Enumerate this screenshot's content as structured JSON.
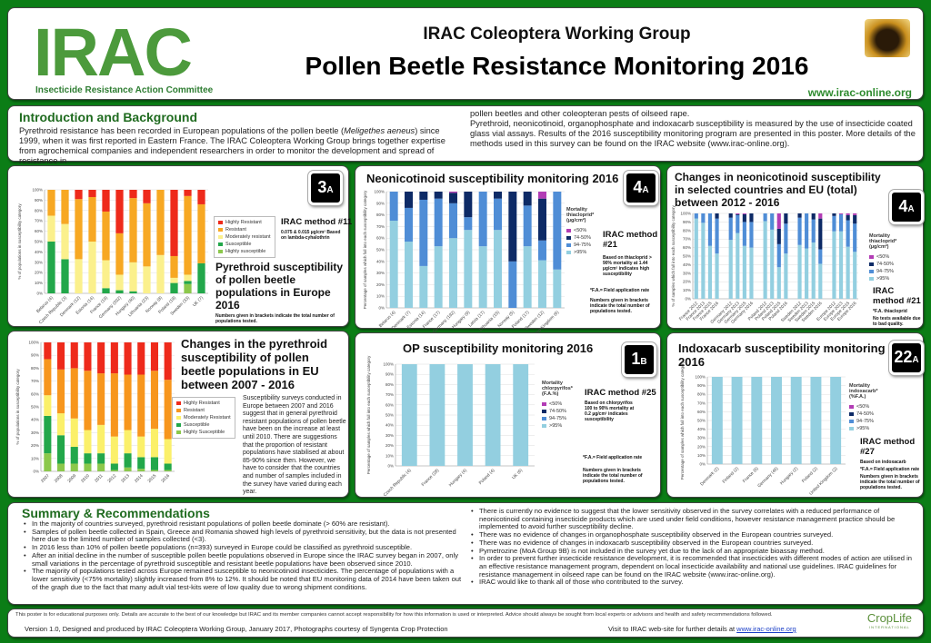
{
  "header": {
    "logo_text": "IRAC",
    "logo_subtitle": "Insecticide Resistance Action Committee",
    "working_group": "IRAC Coleoptera Working Group",
    "title": "Pollen Beetle Resistance Monitoring 2016",
    "url": "www.irac-online.org"
  },
  "intro": {
    "heading": "Introduction and Background",
    "text_left_1": "Pyrethroid resistance has been recorded in European populations of the pollen beetle (",
    "species": "Meligethes aeneus",
    "text_left_2": ") since 1999, when it was first reported in Eastern France. The IRAC Coleoptera Working Group brings together expertise from agrochemical companies and independent researchers in order to monitor the development and spread of resistance in",
    "text_right_1": "pollen beetles and other coleopteran pests of oilseed rape.",
    "text_right_2": "Pyrethroid, neonicotinoid, organophosphate and indoxacarb susceptibility is measured by the use of insecticide coated glass vial assays. Results of the 2016 susceptibility monitoring program are presented in this poster. More details of the methods used in this survey can be found on the IRAC website (www.irac-online.org)."
  },
  "panels": {
    "pyr2016": {
      "title": "Pyrethroid susceptibility of pollen beetle populations in Europe 2016",
      "badge_num": "3",
      "badge_sub": "A",
      "method": "IRAC method #11",
      "method_note": "0.075 & 0.015 µg/cm² Based on lambda-cyhalothrin",
      "note": "Numbers given in brackets indicate the total number of populations tested."
    },
    "pyrTrend": {
      "title": "Changes in the pyrethroid susceptibility of pollen beetle populations in EU between 2007 - 2016",
      "text": "Susceptibility surveys conducted in Europe between 2007 and 2016 suggest that in general pyrethroid resistant populations of pollen beetle have been on the increase at least until 2010. There are suggestions that the proportion of resistant populations have stabilised at about 85-90% since then. However, we have to consider that the countries and number of samples included in the survey have varied during each year."
    },
    "neo2016": {
      "title": "Neonicotinoid susceptibility monitoring 2016",
      "badge_num": "4",
      "badge_sub": "A",
      "method": "IRAC method #21",
      "method_note": "Based on thiacloprid > 90% mortality at 1.44 µg/cm² indicates high susceptibility",
      "fa_note": "*F.A.= Field application rate",
      "note": "Numbers given in brackets indicate the total number of populations tested."
    },
    "neoTrend": {
      "title": "Changes in neonicotinoid susceptibility in selected countries and EU (total) between 2012 - 2016",
      "badge_num": "4",
      "badge_sub": "A",
      "method": "IRAC method #21",
      "fa_note": "*F.A. thiacloprid",
      "note": "No tests available due to bad quality."
    },
    "op2016": {
      "title": "OP susceptibility monitoring 2016",
      "badge_num": "1",
      "badge_sub": "B",
      "method": "IRAC method #25",
      "method_note": "Based on chlorpyrifos 100 to 90% mortality at 0.2 µg/cm² indicates susceptibility",
      "fa_note": "*F.A.= Field application rate",
      "note": "Numbers given in brackets indicate the total number of populations tested."
    },
    "indox2016": {
      "title": "Indoxacarb susceptibility monitoring 2016",
      "badge_num": "22",
      "badge_sub": "A",
      "method": "IRAC method #27",
      "method_note": "Based on indoxacarb",
      "fa_note": "*F.A.= Field application rate",
      "note": "Numbers given in brackets indicate the total number of populations tested."
    }
  },
  "chart_data": [
    {
      "id": "pyr2016",
      "type": "bar",
      "stacked": true,
      "ylabel": "% of populations in susceptibility category",
      "ylim": [
        0,
        100
      ],
      "categories": [
        "Belarus (4)",
        "Czech Republic (3)",
        "Denmark (12)",
        "Estonia (14)",
        "France (19)",
        "Germany (202)",
        "Hungary (40)",
        "Lithuania (23)",
        "Norway (8)",
        "Poland (19)",
        "Sweden (33)",
        "UK (7)"
      ],
      "legend_position": "right",
      "series": [
        {
          "name": "Highly susceptible",
          "color": "#8cc84b",
          "values": [
            0,
            0,
            0,
            0,
            0,
            0,
            0,
            0,
            0,
            0,
            9,
            0
          ]
        },
        {
          "name": "Susceptible",
          "color": "#22a74a",
          "values": [
            50,
            33,
            0,
            0,
            5,
            3,
            2,
            0,
            0,
            10,
            3,
            29
          ]
        },
        {
          "name": "Moderately resistant",
          "color": "#fbf08c",
          "values": [
            25,
            34,
            33,
            50,
            27,
            15,
            28,
            26,
            37,
            5,
            6,
            0
          ]
        },
        {
          "name": "Resistant",
          "color": "#f7a823",
          "values": [
            25,
            33,
            58,
            43,
            47,
            40,
            62,
            61,
            63,
            21,
            76,
            57
          ]
        },
        {
          "name": "Highly Resistant",
          "color": "#ee2a1b",
          "values": [
            0,
            0,
            9,
            7,
            21,
            42,
            8,
            13,
            0,
            64,
            6,
            14
          ]
        }
      ]
    },
    {
      "id": "pyrTrend",
      "type": "bar",
      "stacked": true,
      "ylabel": "% of populations in susceptibility category",
      "ylim": [
        0,
        100
      ],
      "categories": [
        "2007",
        "2008",
        "2009",
        "2010",
        "2011",
        "2012",
        "2013",
        "2014",
        "2015",
        "2016"
      ],
      "legend_position": "right",
      "series": [
        {
          "name": "Highly Susceptible",
          "color": "#8cc84b",
          "values": [
            14,
            6,
            6,
            6,
            6,
            1,
            3,
            2,
            1,
            1
          ]
        },
        {
          "name": "Susceptible",
          "color": "#22a74a",
          "values": [
            29,
            22,
            13,
            8,
            8,
            5,
            11,
            9,
            10,
            5
          ]
        },
        {
          "name": "Moderately Resistant",
          "color": "#fbf06a",
          "values": [
            16,
            17,
            22,
            18,
            22,
            21,
            18,
            16,
            22,
            19
          ]
        },
        {
          "name": "Resistant",
          "color": "#f7961d",
          "values": [
            28,
            34,
            39,
            46,
            40,
            49,
            43,
            48,
            45,
            46
          ]
        },
        {
          "name": "Highly Resistant",
          "color": "#ee2a1b",
          "values": [
            13,
            21,
            20,
            22,
            24,
            24,
            25,
            25,
            22,
            29
          ]
        }
      ]
    },
    {
      "id": "neo2016",
      "type": "bar",
      "stacked": true,
      "ylabel": "Percentage of samples which fall into each susceptibility category",
      "ylim": [
        0,
        100
      ],
      "legend_title": "Mortality thiacloprid* (µg/cm²)",
      "categories": [
        "Belarus (4)",
        "Denmark (7)",
        "Estonia (14)",
        "France (17)",
        "Germany (192)",
        "Hungary (9)",
        "Latvia (17)",
        "Lithuania (15)",
        "Norway (5)",
        "Poland (17)",
        "Sweden (12)",
        "United Kingdom (6)"
      ],
      "legend_position": "right",
      "series": [
        {
          "name": ">95%",
          "color": "#93cfe0",
          "values": [
            75,
            57,
            36,
            53,
            60,
            67,
            53,
            67,
            0,
            53,
            41,
            33
          ]
        },
        {
          "name": "94-75%",
          "color": "#4f8dd6",
          "values": [
            25,
            29,
            57,
            41,
            30,
            11,
            47,
            27,
            40,
            35,
            17,
            67
          ]
        },
        {
          "name": "74-50%",
          "color": "#0d2a66",
          "values": [
            0,
            14,
            7,
            6,
            9,
            22,
            0,
            6,
            60,
            12,
            36,
            0
          ]
        },
        {
          "name": "<50%",
          "color": "#b23cb5",
          "values": [
            0,
            0,
            0,
            0,
            1,
            0,
            0,
            0,
            0,
            0,
            6,
            0
          ]
        }
      ]
    },
    {
      "id": "neoTrend",
      "type": "bar",
      "stacked": true,
      "ylabel": "% of samples which fall into each susceptibility category",
      "ylim": [
        0,
        100
      ],
      "legend_title": "Mortality thiacloprid* (µg/cm²)",
      "categories": [
        "France 2012",
        "France 2013",
        "France 2015",
        "France 2016",
        "",
        "Germany 2012",
        "Germany 2013",
        "Germany 2015",
        "Germany 2016",
        "",
        "Poland 2012",
        "Poland 2013",
        "Poland 2015",
        "Poland 2016",
        "",
        "Sweden 2012",
        "Sweden 2013",
        "Sweden 2015",
        "Sweden 2016",
        "",
        "Europe 2012",
        "Europe 2013",
        "Europe 2015",
        "Europe 2016"
      ],
      "legend_position": "right",
      "series": [
        {
          "name": ">95%",
          "color": "#93cfe0",
          "values": [
            94,
            89,
            62,
            53,
            0,
            69,
            77,
            62,
            60,
            0,
            91,
            81,
            37,
            53,
            0,
            63,
            59,
            66,
            41,
            0,
            79,
            79,
            61,
            55
          ]
        },
        {
          "name": "94-75%",
          "color": "#4f8dd6",
          "values": [
            6,
            11,
            38,
            41,
            0,
            26,
            21,
            28,
            30,
            0,
            9,
            19,
            27,
            35,
            0,
            32,
            41,
            27,
            17,
            0,
            18,
            20,
            31,
            33
          ]
        },
        {
          "name": "74-50%",
          "color": "#0d2a66",
          "values": [
            0,
            0,
            0,
            6,
            0,
            5,
            1,
            9,
            10,
            0,
            0,
            0,
            18,
            12,
            0,
            5,
            0,
            7,
            36,
            0,
            3,
            0,
            6,
            10
          ]
        },
        {
          "name": "<50%",
          "color": "#b23cb5",
          "values": [
            0,
            0,
            0,
            0,
            0,
            0,
            1,
            1,
            0,
            0,
            0,
            0,
            18,
            0,
            0,
            0,
            0,
            0,
            6,
            0,
            0,
            1,
            2,
            2
          ]
        }
      ]
    },
    {
      "id": "op2016",
      "type": "bar",
      "stacked": true,
      "ylabel": "Percentage of samples which fall into each susceptibility category",
      "ylim": [
        0,
        100
      ],
      "legend_title": "Mortality chlorpyrifos* (F.A.%)",
      "categories": [
        "Czech Republic (4)",
        "France (28)",
        "Hungary (4)",
        "Poland (4)",
        "UK (6)"
      ],
      "legend_position": "right",
      "series": [
        {
          "name": ">95%",
          "color": "#93cfe0",
          "values": [
            100,
            100,
            100,
            100,
            100
          ]
        },
        {
          "name": "94-75%",
          "color": "#4f8dd6",
          "values": [
            0,
            0,
            0,
            0,
            0
          ]
        },
        {
          "name": "74-50%",
          "color": "#0d2a66",
          "values": [
            0,
            0,
            0,
            0,
            0
          ]
        },
        {
          "name": "<50%",
          "color": "#b23cb5",
          "values": [
            0,
            0,
            0,
            0,
            0
          ]
        }
      ]
    },
    {
      "id": "indox2016",
      "type": "bar",
      "stacked": true,
      "ylabel": "Percentage of samples which fall into each susceptibility category",
      "ylim": [
        0,
        100
      ],
      "legend_title": "Mortality indoxacarb* (%F.A.)",
      "categories": [
        "Denmark (2)",
        "Finland (2)",
        "France (6)",
        "Germany (46)",
        "Hungary (2)",
        "Poland (2)",
        "United Kingdom (2)"
      ],
      "legend_position": "right",
      "series": [
        {
          "name": ">95%",
          "color": "#93cfe0",
          "values": [
            100,
            100,
            100,
            100,
            100,
            100,
            100
          ]
        },
        {
          "name": "94-75%",
          "color": "#4f8dd6",
          "values": [
            0,
            0,
            0,
            0,
            0,
            0,
            0
          ]
        },
        {
          "name": "74-50%",
          "color": "#0d2a66",
          "values": [
            0,
            0,
            0,
            0,
            0,
            0,
            0
          ]
        },
        {
          "name": "<50%",
          "color": "#b23cb5",
          "values": [
            0,
            0,
            0,
            0,
            0,
            0,
            0
          ]
        }
      ]
    }
  ],
  "summary": {
    "heading": "Summary & Recommendations",
    "left": [
      "In the majority of countries surveyed, pyrethroid resistant populations of pollen beetle dominate (> 60% are resistant).",
      "Samples of pollen beetle collected in Spain, Greece and Romania showed high levels of pyrethroid sensitivity, but the data is not presented here due to the limited number of samples collected (<3).",
      "In 2016 less than 10% of pollen beetle populations (n=393) surveyed in Europe could be classified as pyrethroid susceptible.",
      "After an initial decline in the number of susceptible pollen beetle populations observed in Europe since the IRAC survey began in 2007, only small variations in the percentage of pyrethroid susceptible and resistant beetle populations have been observed since 2010.",
      "The majority of populations tested across Europe remained susceptible to neonicotinoid insecticides. The percentage of populations with a lower sensitivity (<75% mortality) slightly increased from 8% to 12%. It should be noted that EU monitoring data of 2014 have been taken out of the graph due to the fact that many adult vial test-kits were of low quality due to wrong shipment conditions."
    ],
    "right": [
      "There is currently no evidence to suggest that the lower sensitivity observed in the survey correlates with a reduced performance of neonicotinoid containing insecticide products which are used under field conditions, however resistance management practice should be implemented to avoid further susceptibility decline.",
      "There was no evidence of changes in organophosphate susceptibility observed in the European countries surveyed.",
      "There was no evidence of changes in indoxacarb susceptibility observed in the European countries surveyed.",
      "Pymetrozine (MoA Group 9B) is not included in the survey yet due to the lack of an appropriate bioassay method.",
      "In order to prevent further insecticide resistance development, it is recommended that insecticides with different modes of action are utilised in an effective resistance management program, dependent on local insecticide availability and national use guidelines. IRAC guidelines for resistance management in oilseed rape can be found on the IRAC website (www.irac-online.org).",
      "IRAC would like to thank all of those who contributed to the survey."
    ]
  },
  "footer": {
    "disclaimer": "This poster is for educational purposes only. Details are accurate to the best of our knowledge but IRAC and its member companies cannot accept responsibility for how this information is used or interpreted. Advice should always be sought from local experts or advisors and health and safety recommendations followed.",
    "version": "Version 1.0, Designed and produced by IRAC Coleoptera Working Group, January 2017, Photographs courtesy of Syngenta Crop Protection",
    "visit_text": "Visit to IRAC web-site for further details at ",
    "visit_link": "www.irac-online.org",
    "croplife": "CropLife",
    "croplife_sub": "INTERNATIONAL"
  }
}
